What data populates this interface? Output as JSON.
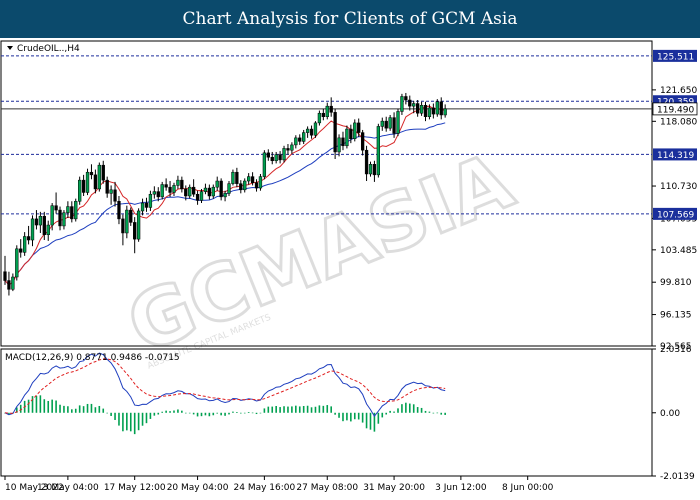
{
  "header": {
    "title": "Chart Analysis for Clients of GCM Asia"
  },
  "watermark": {
    "text": "GCMASIA",
    "subtext": "ABSOLUTE CAPITAL MARKETS"
  },
  "chart_data": [
    {
      "type": "candlestick",
      "title": "CrudeOIL..,H4",
      "ylim": [
        92.565,
        127.2
      ],
      "price_axis_labels": [
        "121.650",
        "118.080",
        "110.730",
        "107.055",
        "103.485",
        "99.810",
        "96.135",
        "92.565"
      ],
      "levels": [
        {
          "label": "125.511",
          "value": 125.511
        },
        {
          "label": "120.359",
          "value": 120.359
        },
        {
          "label": "114.319",
          "value": 114.319
        },
        {
          "label": "107.569",
          "value": 107.569
        }
      ],
      "current_price": {
        "label": "119.490",
        "value": 119.49
      },
      "colors": {
        "up": "#00a050",
        "down": "#000000",
        "level_line": "#1f2d9c",
        "ma_fast": "#d62728",
        "ma_slow": "#1f3fbf",
        "level_label_bg": "#1a2f9c"
      },
      "ohlc": [
        [
          101,
          102.8,
          99.5,
          100
        ],
        [
          100,
          101,
          98.3,
          99
        ],
        [
          99,
          100.8,
          98.8,
          100.4
        ],
        [
          100.4,
          104,
          100,
          103.6
        ],
        [
          103.6,
          104.7,
          102.6,
          103.2
        ],
        [
          103.2,
          105.5,
          102.8,
          105
        ],
        [
          105,
          106.2,
          104.1,
          104.6
        ],
        [
          104.6,
          107.4,
          103.9,
          107
        ],
        [
          107,
          108,
          105.8,
          106.3
        ],
        [
          106.3,
          107.8,
          105.4,
          107.3
        ],
        [
          107.3,
          107.8,
          104.6,
          105.2
        ],
        [
          105.2,
          106.8,
          104.5,
          106.3
        ],
        [
          106.3,
          108.8,
          105.7,
          108.5
        ],
        [
          108.5,
          110,
          107.6,
          108
        ],
        [
          108,
          108.4,
          105.7,
          106.2
        ],
        [
          106.2,
          108,
          105.8,
          107.7
        ],
        [
          107.7,
          109,
          107.1,
          108.4
        ],
        [
          108.4,
          109,
          106.6,
          107
        ],
        [
          107,
          109.3,
          106.7,
          109
        ],
        [
          109,
          111.8,
          108.6,
          111.4
        ],
        [
          111.4,
          112,
          109.6,
          110
        ],
        [
          110,
          112.7,
          109.7,
          112.3
        ],
        [
          112.3,
          113.2,
          111.5,
          112
        ],
        [
          112,
          112.6,
          109.9,
          110.4
        ],
        [
          110.4,
          113.4,
          110.1,
          113.1
        ],
        [
          113.1,
          113.6,
          111,
          111.4
        ],
        [
          111.4,
          111.8,
          109.4,
          109.9
        ],
        [
          109.9,
          110.8,
          108.6,
          110.3
        ],
        [
          110.3,
          111.2,
          108.4,
          109
        ],
        [
          109,
          109.6,
          106.4,
          107
        ],
        [
          107,
          107.5,
          104,
          105.4
        ],
        [
          105.4,
          108.5,
          104.8,
          108
        ],
        [
          108,
          108.3,
          106.2,
          106.6
        ],
        [
          106.6,
          107.2,
          103.1,
          104.7
        ],
        [
          104.7,
          108.2,
          104.4,
          107.9
        ],
        [
          107.9,
          109.3,
          107.4,
          108.8
        ],
        [
          108.8,
          109.4,
          107.8,
          108.3
        ],
        [
          108.3,
          110.2,
          107.9,
          109.8
        ],
        [
          109.8,
          110.7,
          109.3,
          110.1
        ],
        [
          110.1,
          110.6,
          109,
          109.5
        ],
        [
          109.5,
          111.2,
          109.2,
          110.9
        ],
        [
          110.9,
          111.6,
          110.2,
          110.6
        ],
        [
          110.6,
          111.3,
          109.5,
          110
        ],
        [
          110,
          111.1,
          109.6,
          110.8
        ],
        [
          110.8,
          111.9,
          110.4,
          111.4
        ],
        [
          111.4,
          111.8,
          110,
          110.4
        ],
        [
          110.4,
          110.8,
          109.1,
          109.6
        ],
        [
          109.6,
          110.9,
          109.3,
          110.6
        ],
        [
          110.6,
          111.5,
          109.5,
          109.8
        ],
        [
          109.8,
          110.2,
          108.6,
          109.1
        ],
        [
          109.1,
          110.4,
          108.8,
          110.1
        ],
        [
          110.1,
          111,
          109.8,
          110.5
        ],
        [
          110.5,
          110.9,
          109.2,
          109.6
        ],
        [
          109.6,
          110.9,
          109.3,
          110.6
        ],
        [
          110.6,
          111.8,
          110.2,
          111.3
        ],
        [
          111.3,
          111.6,
          109.1,
          109.5
        ],
        [
          109.5,
          110.2,
          109,
          109.9
        ],
        [
          109.9,
          111.3,
          109.6,
          111
        ],
        [
          111,
          112.6,
          110.8,
          112.3
        ],
        [
          112.3,
          112.8,
          110.6,
          111
        ],
        [
          111,
          111.4,
          109.9,
          110.3
        ],
        [
          110.3,
          111.6,
          110,
          111.3
        ],
        [
          111.3,
          112.2,
          110.9,
          111.8
        ],
        [
          111.8,
          112.3,
          110.8,
          111.1
        ],
        [
          111.1,
          111.5,
          110.1,
          110.5
        ],
        [
          110.5,
          112.1,
          110.2,
          111.8
        ],
        [
          111.8,
          114.8,
          111.5,
          114.5
        ],
        [
          114.5,
          114.9,
          113.6,
          114
        ],
        [
          114,
          114.6,
          113.2,
          113.6
        ],
        [
          113.6,
          114.6,
          113.3,
          114.3
        ],
        [
          114.3,
          114.7,
          113.3,
          113.7
        ],
        [
          113.7,
          115.3,
          113.4,
          115
        ],
        [
          115,
          115.5,
          114.3,
          114.8
        ],
        [
          114.8,
          115.7,
          114.4,
          115.4
        ],
        [
          115.4,
          116.5,
          115,
          116.2
        ],
        [
          116.2,
          116.6,
          115.4,
          115.8
        ],
        [
          115.8,
          117.1,
          115.5,
          116.8
        ],
        [
          116.8,
          117.5,
          116.2,
          117.2
        ],
        [
          117.2,
          117.6,
          116.1,
          116.5
        ],
        [
          116.5,
          118.1,
          116.2,
          117.9
        ],
        [
          117.9,
          119.3,
          117.6,
          119
        ],
        [
          119,
          119.5,
          118.2,
          118.6
        ],
        [
          118.6,
          120.2,
          118.3,
          119.8
        ],
        [
          119.8,
          120.8,
          118.6,
          119.1
        ],
        [
          119.1,
          119.5,
          113.8,
          114.6
        ],
        [
          114.6,
          116.6,
          114.1,
          116.2
        ],
        [
          116.2,
          116.9,
          114.8,
          115.3
        ],
        [
          115.3,
          117.6,
          115,
          117.2
        ],
        [
          117.2,
          117.7,
          115.6,
          116.1
        ],
        [
          116.1,
          118.3,
          115.8,
          117.9
        ],
        [
          117.9,
          118.4,
          116.3,
          116.8
        ],
        [
          116.8,
          117.1,
          114.2,
          114.8
        ],
        [
          114.8,
          115.3,
          111.3,
          112.1
        ],
        [
          112.1,
          113.5,
          111.8,
          113.2
        ],
        [
          113.2,
          113.6,
          111.2,
          112
        ],
        [
          112,
          117.8,
          111.7,
          117.5
        ],
        [
          117.5,
          118.5,
          117,
          118.1
        ],
        [
          118.1,
          118.6,
          116.9,
          117.3
        ],
        [
          117.3,
          118.8,
          117,
          118.5
        ],
        [
          118.5,
          119.1,
          116.2,
          116.7
        ],
        [
          116.7,
          119.5,
          116.4,
          119.2
        ],
        [
          119.2,
          121.2,
          118.8,
          120.9
        ],
        [
          120.9,
          121.3,
          120,
          120.5
        ],
        [
          120.5,
          121,
          119.3,
          119.8
        ],
        [
          119.8,
          120.4,
          119,
          120.1
        ],
        [
          120.1,
          120.5,
          118.6,
          119
        ],
        [
          119,
          120.3,
          118.7,
          119.9
        ],
        [
          119.9,
          120.3,
          118.1,
          118.6
        ],
        [
          118.6,
          120,
          118.3,
          119.6
        ],
        [
          119.6,
          120.1,
          118.4,
          118.9
        ],
        [
          118.9,
          120.6,
          118.6,
          120.3
        ],
        [
          120.3,
          120.8,
          118.3,
          118.8
        ],
        [
          118.8,
          120,
          118.5,
          119.5
        ]
      ]
    },
    {
      "type": "line",
      "title": "MACD(12,26,9) 0.8771 0.9486 -0.0715",
      "ylim": [
        -2.0139,
        2.0316
      ],
      "axis_labels": [
        {
          "label": "2.0316",
          "value": 2.0316
        },
        {
          "label": "0.00",
          "value": 0
        },
        {
          "label": "-2.0139",
          "value": -2.0139
        }
      ],
      "colors": {
        "macd": "#1f3fbf",
        "signal": "#e02020",
        "histogram": "#00a050"
      }
    }
  ],
  "time_axis": {
    "labels": [
      {
        "label": "10 May 2022",
        "index": 0
      },
      {
        "label": "13 May 04:00",
        "index": 16
      },
      {
        "label": "17 May 12:00",
        "index": 33
      },
      {
        "label": "20 May 04:00",
        "index": 49
      },
      {
        "label": "24 May 16:00",
        "index": 66
      },
      {
        "label": "27 May 08:00",
        "index": 82
      },
      {
        "label": "31 May 20:00",
        "index": 99
      },
      {
        "label": "3 Jun 12:00",
        "index": 116
      },
      {
        "label": "8 Jun 00:00",
        "index": 133
      }
    ]
  }
}
